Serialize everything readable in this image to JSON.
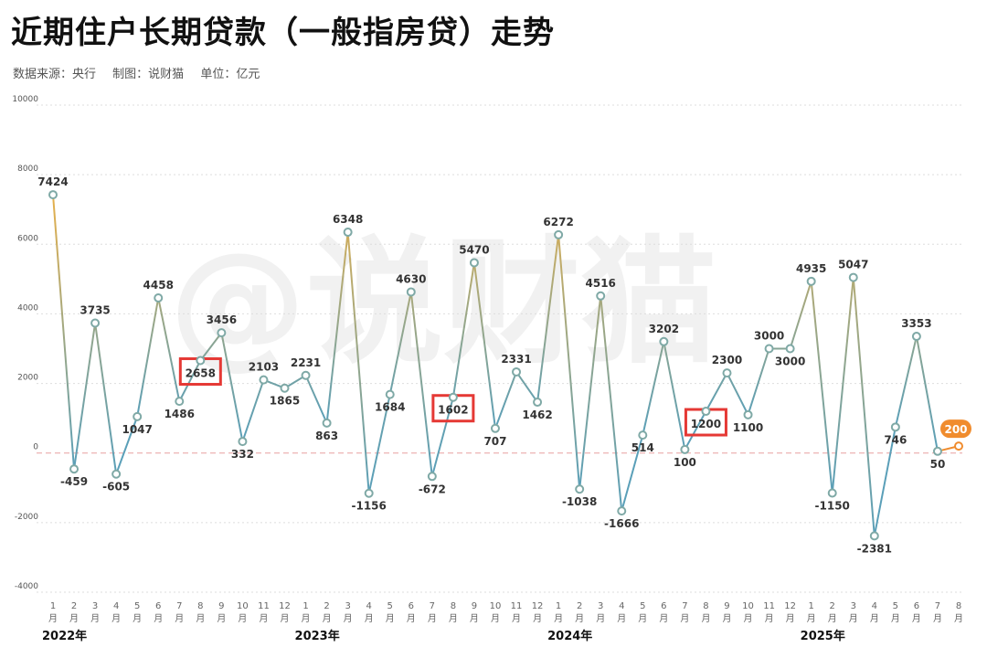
{
  "title": "近期住户长期贷款（一般指房贷）走势",
  "subtitle": {
    "source": "数据来源：央行",
    "author": "制图：说财猫",
    "unit": "单位：亿元"
  },
  "watermark": "@说财猫",
  "colors": {
    "line_teal": "#5a9fb8",
    "line_gold": "#e8b04a",
    "marker_fill": "#ffffff",
    "marker_stroke": "#7fa9a6",
    "highlight_box": "#e53935",
    "last_point": "#f08c2e",
    "zero_line": "#e8a0a0",
    "grid": "#dddddd"
  },
  "chart_data": {
    "type": "line",
    "title": "近期住户长期贷款（一般指房贷）走势",
    "unit": "亿元",
    "ylim": [
      -4000,
      10000
    ],
    "yticks": [
      -4000,
      -2000,
      0,
      2000,
      4000,
      6000,
      8000,
      10000
    ],
    "grid": true,
    "years": [
      {
        "label": "2022年",
        "start_index": 0
      },
      {
        "label": "2023年",
        "start_index": 12
      },
      {
        "label": "2024年",
        "start_index": 24
      },
      {
        "label": "2025年",
        "start_index": 36
      }
    ],
    "x": [
      "1",
      "2",
      "3",
      "4",
      "5",
      "6",
      "7",
      "8",
      "9",
      "10",
      "11",
      "12",
      "1",
      "2",
      "3",
      "4",
      "5",
      "6",
      "7",
      "8",
      "9",
      "10",
      "11",
      "12",
      "1",
      "2",
      "3",
      "4",
      "5",
      "6",
      "7",
      "8",
      "9",
      "10",
      "11",
      "12",
      "1",
      "2",
      "3",
      "4",
      "5",
      "6",
      "7",
      "8"
    ],
    "month_suffix": "月",
    "values": [
      7424,
      -459,
      3735,
      -605,
      1047,
      4458,
      1486,
      2658,
      3456,
      332,
      2103,
      1865,
      2231,
      863,
      6348,
      -1156,
      1684,
      4630,
      -672,
      1602,
      5470,
      707,
      2331,
      1462,
      6272,
      -1038,
      4516,
      -1666,
      514,
      3202,
      100,
      1200,
      2300,
      1100,
      3000,
      3000,
      4935,
      -1150,
      5047,
      -2381,
      746,
      3353,
      50,
      200
    ],
    "highlighted_indices": [
      7,
      19,
      31
    ],
    "last_point_highlighted": true
  }
}
